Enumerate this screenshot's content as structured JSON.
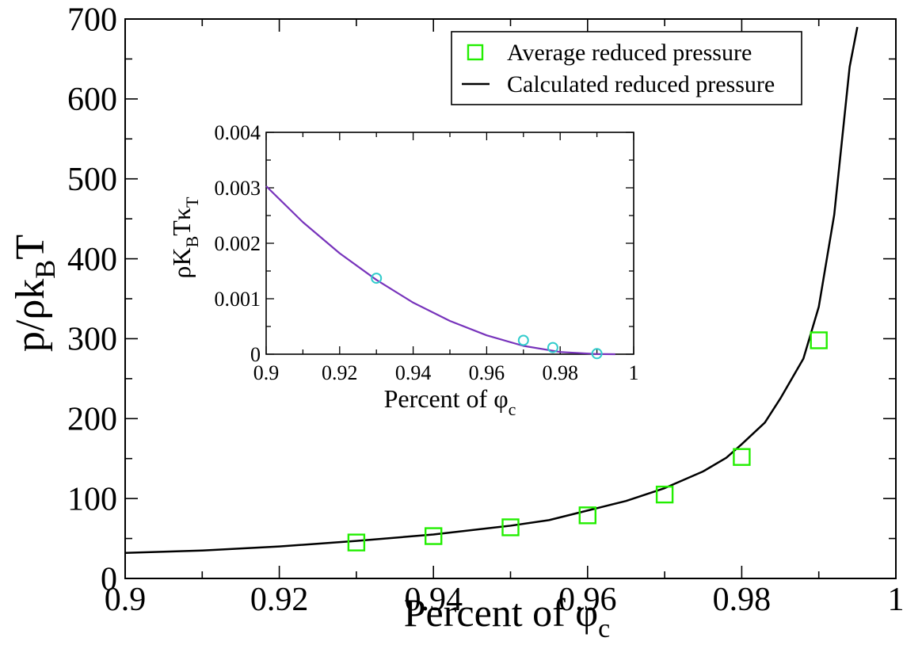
{
  "chart_data": [
    {
      "id": "main",
      "type": "line",
      "title": "",
      "xlabel": "Percent of φ",
      "xlabel_sub": "c",
      "ylabel": "p/ρk",
      "ylabel_sub": "B",
      "ylabel_tail": "T",
      "xlim": [
        0.9,
        1.0
      ],
      "ylim": [
        0,
        700
      ],
      "x_ticks": [
        0.9,
        0.92,
        0.94,
        0.96,
        0.98,
        1.0
      ],
      "x_tick_labels": [
        "0.9",
        "0.92",
        "0.94",
        "0.96",
        "0.98",
        "1"
      ],
      "y_ticks": [
        0,
        100,
        200,
        300,
        400,
        500,
        600,
        700
      ],
      "y_tick_labels": [
        "0",
        "100",
        "200",
        "300",
        "400",
        "500",
        "600",
        "700"
      ],
      "grid": false,
      "legend_position": "top-right",
      "series": [
        {
          "name": "Average reduced pressure",
          "kind": "scatter",
          "marker": "square",
          "color": "#22ee00",
          "x": [
            0.93,
            0.94,
            0.95,
            0.96,
            0.97,
            0.98,
            0.99
          ],
          "y": [
            45,
            53,
            64,
            79,
            105,
            152,
            298
          ]
        },
        {
          "name": "Calculated reduced pressure",
          "kind": "line",
          "color": "#000000",
          "x": [
            0.9,
            0.91,
            0.92,
            0.93,
            0.94,
            0.95,
            0.955,
            0.96,
            0.965,
            0.97,
            0.975,
            0.978,
            0.98,
            0.983,
            0.985,
            0.988,
            0.99,
            0.992,
            0.994,
            0.995
          ],
          "y": [
            32,
            35,
            40,
            47,
            55,
            66,
            73,
            85,
            97,
            113,
            134,
            151,
            168,
            195,
            225,
            275,
            340,
            455,
            640,
            690
          ]
        }
      ]
    },
    {
      "id": "inset",
      "type": "line",
      "title": "",
      "xlabel": "Percent of φ",
      "xlabel_sub": "c",
      "ylabel": "ρK",
      "ylabel_sub": "B",
      "ylabel_mid": "Tκ",
      "ylabel_sub2": "T",
      "xlim": [
        0.9,
        1.0
      ],
      "ylim": [
        0,
        0.004
      ],
      "x_ticks": [
        0.9,
        0.92,
        0.94,
        0.96,
        0.98,
        1.0
      ],
      "x_tick_labels": [
        "0.9",
        "0.92",
        "0.94",
        "0.96",
        "0.98",
        "1"
      ],
      "y_ticks": [
        0,
        0.001,
        0.002,
        0.003,
        0.004
      ],
      "y_tick_labels": [
        "0",
        "0.001",
        "0.002",
        "0.003",
        "0.004"
      ],
      "grid": false,
      "series": [
        {
          "kind": "scatter",
          "marker": "circle",
          "color": "#33cccc",
          "x": [
            0.93,
            0.97,
            0.978,
            0.99
          ],
          "y": [
            0.00137,
            0.00025,
            0.00012,
            1e-05
          ]
        },
        {
          "kind": "line",
          "color": "#7733bb",
          "x": [
            0.9,
            0.91,
            0.92,
            0.93,
            0.94,
            0.95,
            0.96,
            0.97,
            0.98,
            0.99,
            0.995
          ],
          "y": [
            0.00303,
            0.00238,
            0.00182,
            0.00134,
            0.00093,
            0.0006,
            0.00034,
            0.00015,
            4e-05,
            2.5e-06,
            0.0
          ]
        }
      ]
    }
  ]
}
